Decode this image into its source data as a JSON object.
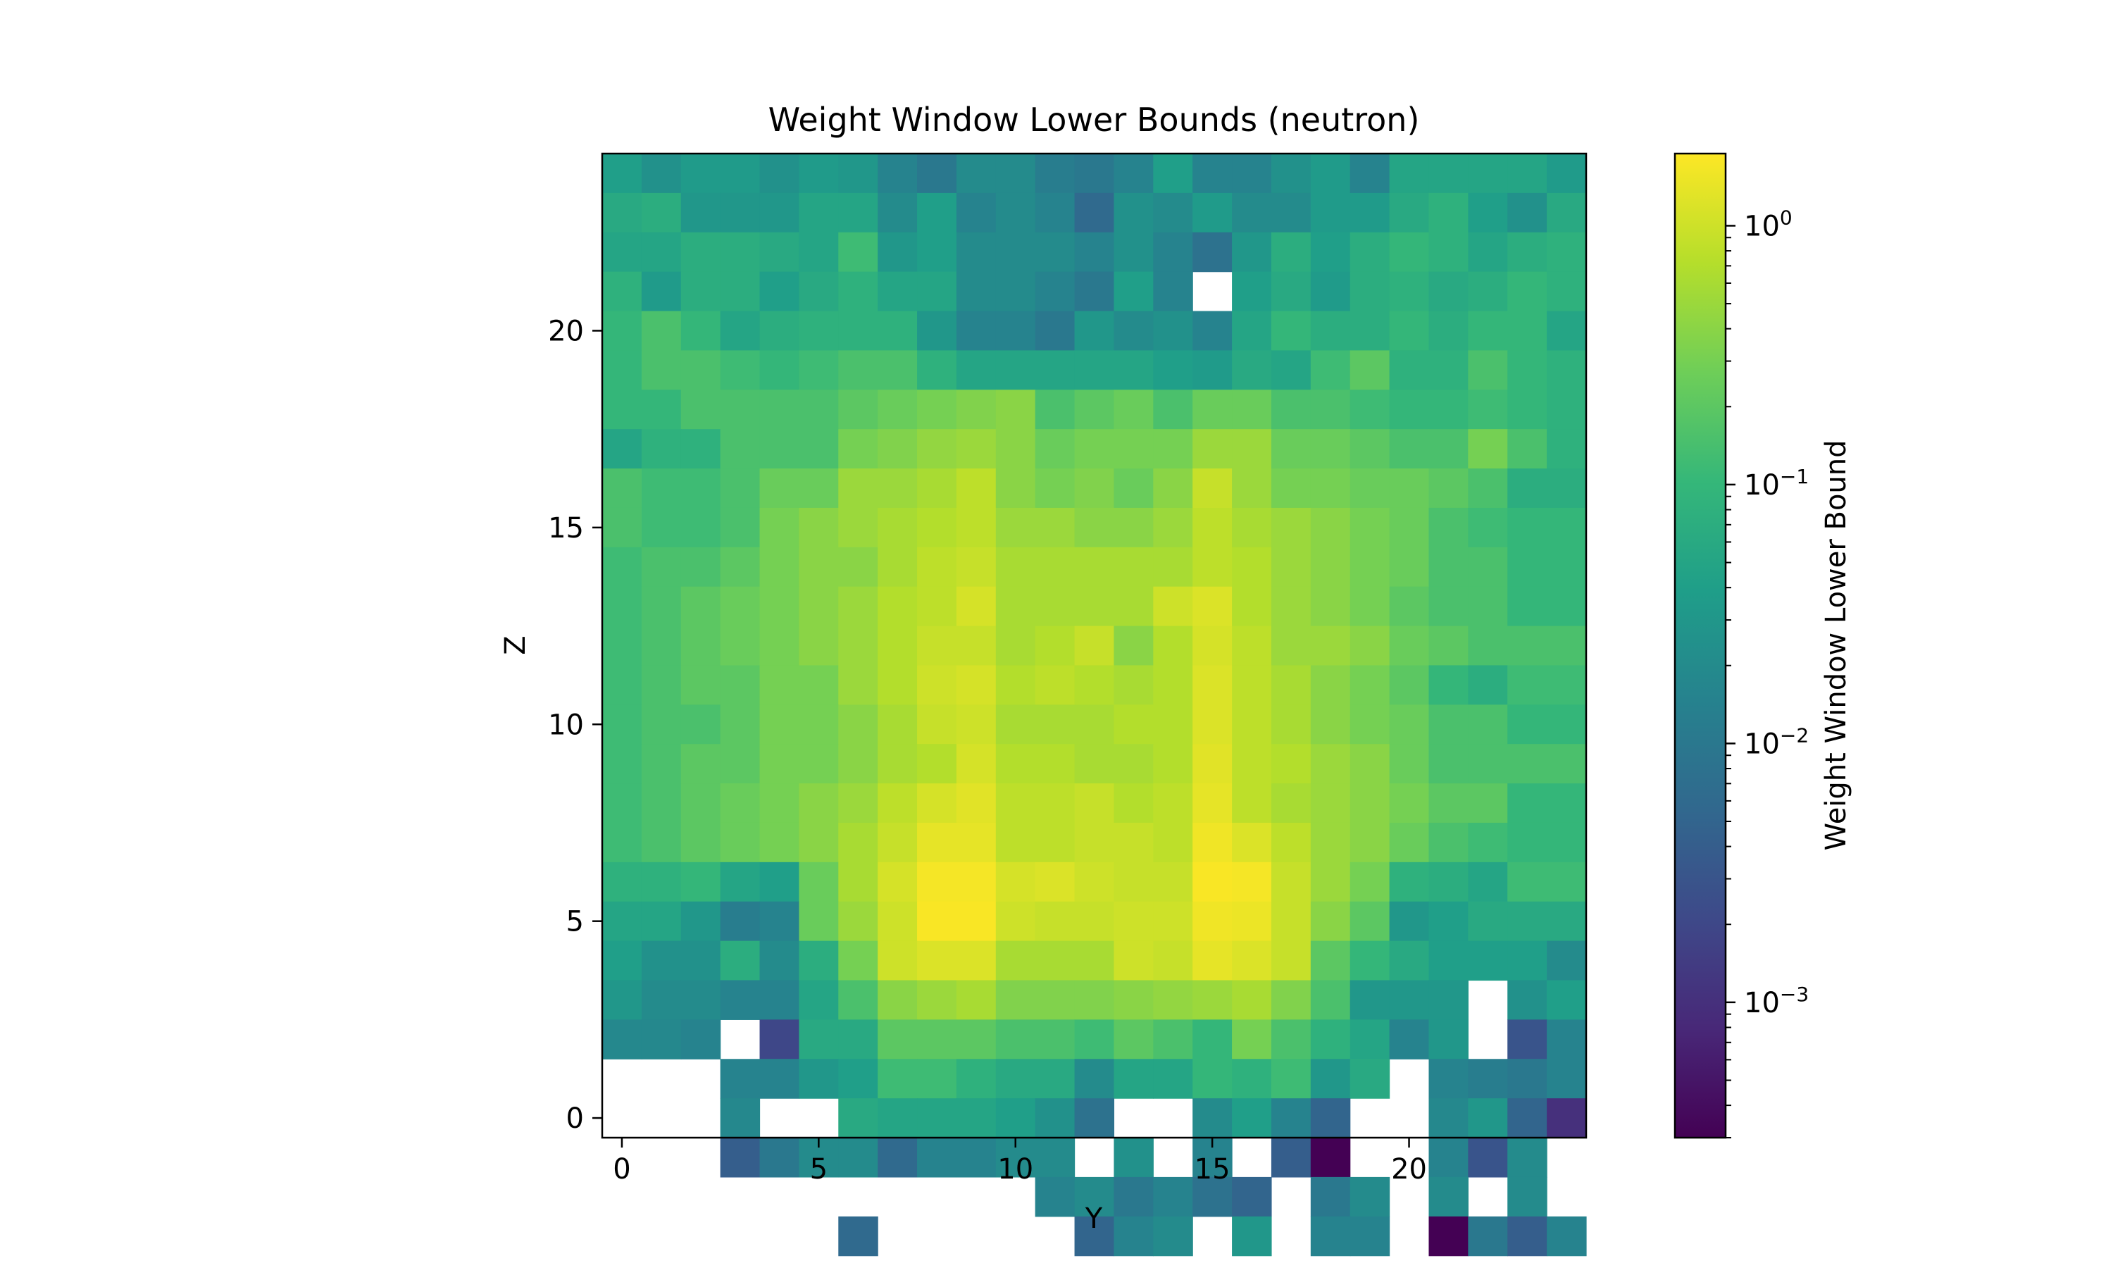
{
  "chart_data": {
    "type": "heatmap",
    "title": "Weight Window Lower Bounds (neutron)",
    "xlabel": "Y",
    "ylabel": "Z",
    "xlim": [
      -0.5,
      24.5
    ],
    "ylim": [
      -0.5,
      24.5
    ],
    "x_ticks": [
      "0",
      "5",
      "10",
      "15",
      "20"
    ],
    "x_tick_values": [
      0,
      5,
      10,
      15,
      20
    ],
    "y_ticks": [
      "0",
      "5",
      "10",
      "15",
      "20"
    ],
    "y_tick_values": [
      0,
      5,
      10,
      15,
      20
    ],
    "colorbar": {
      "label": "Weight Window Lower Bound",
      "scale": "log",
      "colormap": "viridis",
      "vmin": 0.0003,
      "vmax": 1.9,
      "tick_labels": [
        "10",
        "10",
        "10",
        "10"
      ],
      "tick_exponents": [
        "0",
        "−1",
        "−2",
        "−3"
      ],
      "tick_values": [
        1,
        0.1,
        0.01,
        0.001
      ]
    },
    "missing_value": null,
    "rows_z_descending": [
      [
        0.04,
        0.025,
        0.035,
        0.035,
        0.025,
        0.035,
        0.03,
        0.015,
        0.01,
        0.02,
        0.02,
        0.012,
        0.01,
        0.015,
        0.04,
        0.015,
        0.015,
        0.025,
        0.035,
        0.015,
        0.05,
        0.05,
        0.05,
        0.05,
        0.035
      ],
      [
        0.06,
        0.07,
        0.03,
        0.03,
        0.03,
        0.05,
        0.05,
        0.02,
        0.04,
        0.015,
        0.02,
        0.015,
        0.006,
        0.025,
        0.02,
        0.035,
        0.02,
        0.02,
        0.035,
        0.035,
        0.06,
        0.08,
        0.04,
        0.025,
        0.06
      ],
      [
        0.05,
        0.05,
        0.07,
        0.07,
        0.06,
        0.05,
        0.12,
        0.03,
        0.04,
        0.02,
        0.02,
        0.02,
        0.015,
        0.025,
        0.015,
        0.008,
        0.03,
        0.07,
        0.04,
        0.07,
        0.1,
        0.08,
        0.05,
        0.07,
        0.08
      ],
      [
        0.08,
        0.035,
        0.07,
        0.07,
        0.04,
        0.06,
        0.08,
        0.05,
        0.05,
        0.02,
        0.02,
        0.015,
        0.01,
        0.04,
        0.015,
        null,
        0.04,
        0.06,
        0.035,
        0.07,
        0.08,
        0.06,
        0.07,
        0.1,
        0.08
      ],
      [
        0.1,
        0.15,
        0.1,
        0.05,
        0.07,
        0.08,
        0.08,
        0.08,
        0.03,
        0.015,
        0.015,
        0.01,
        0.03,
        0.02,
        0.025,
        0.015,
        0.05,
        0.1,
        0.07,
        0.07,
        0.1,
        0.07,
        0.1,
        0.1,
        0.05
      ],
      [
        0.1,
        0.15,
        0.15,
        0.12,
        0.1,
        0.12,
        0.15,
        0.15,
        0.08,
        0.05,
        0.05,
        0.05,
        0.05,
        0.05,
        0.04,
        0.035,
        0.06,
        0.05,
        0.12,
        0.2,
        0.08,
        0.08,
        0.15,
        0.1,
        0.08
      ],
      [
        0.1,
        0.1,
        0.15,
        0.15,
        0.15,
        0.15,
        0.2,
        0.25,
        0.3,
        0.35,
        0.4,
        0.15,
        0.2,
        0.25,
        0.15,
        0.25,
        0.25,
        0.15,
        0.15,
        0.12,
        0.1,
        0.1,
        0.12,
        0.1,
        0.08
      ],
      [
        0.05,
        0.08,
        0.08,
        0.15,
        0.15,
        0.15,
        0.3,
        0.35,
        0.45,
        0.5,
        0.4,
        0.25,
        0.3,
        0.3,
        0.3,
        0.5,
        0.5,
        0.25,
        0.25,
        0.2,
        0.15,
        0.15,
        0.3,
        0.15,
        0.08
      ],
      [
        0.15,
        0.12,
        0.12,
        0.15,
        0.25,
        0.25,
        0.5,
        0.5,
        0.6,
        0.8,
        0.4,
        0.3,
        0.35,
        0.25,
        0.4,
        0.9,
        0.5,
        0.3,
        0.3,
        0.25,
        0.25,
        0.2,
        0.15,
        0.07,
        0.07
      ],
      [
        0.15,
        0.12,
        0.12,
        0.15,
        0.3,
        0.4,
        0.5,
        0.6,
        0.7,
        0.8,
        0.5,
        0.5,
        0.4,
        0.4,
        0.5,
        0.8,
        0.6,
        0.5,
        0.4,
        0.3,
        0.25,
        0.15,
        0.12,
        0.1,
        0.1
      ],
      [
        0.12,
        0.15,
        0.15,
        0.2,
        0.3,
        0.4,
        0.4,
        0.6,
        0.8,
        0.9,
        0.6,
        0.6,
        0.6,
        0.6,
        0.6,
        0.8,
        0.7,
        0.5,
        0.4,
        0.3,
        0.25,
        0.15,
        0.15,
        0.1,
        0.1
      ],
      [
        0.12,
        0.15,
        0.2,
        0.25,
        0.3,
        0.4,
        0.5,
        0.7,
        0.8,
        1.1,
        0.6,
        0.6,
        0.6,
        0.6,
        1.0,
        1.2,
        0.7,
        0.5,
        0.4,
        0.3,
        0.2,
        0.15,
        0.15,
        0.1,
        0.1
      ],
      [
        0.12,
        0.15,
        0.2,
        0.25,
        0.3,
        0.4,
        0.5,
        0.7,
        0.9,
        0.9,
        0.6,
        0.7,
        0.9,
        0.4,
        0.7,
        1.1,
        0.8,
        0.5,
        0.5,
        0.4,
        0.25,
        0.2,
        0.15,
        0.15,
        0.15
      ],
      [
        0.12,
        0.15,
        0.2,
        0.2,
        0.3,
        0.3,
        0.5,
        0.7,
        1.0,
        1.1,
        0.7,
        0.8,
        0.7,
        0.6,
        0.7,
        1.2,
        0.8,
        0.6,
        0.4,
        0.3,
        0.2,
        0.1,
        0.07,
        0.12,
        0.12
      ],
      [
        0.12,
        0.15,
        0.15,
        0.2,
        0.3,
        0.3,
        0.4,
        0.6,
        0.9,
        1.0,
        0.6,
        0.6,
        0.6,
        0.7,
        0.7,
        1.2,
        0.8,
        0.6,
        0.4,
        0.3,
        0.25,
        0.15,
        0.15,
        0.1,
        0.1
      ],
      [
        0.12,
        0.15,
        0.2,
        0.2,
        0.3,
        0.3,
        0.4,
        0.6,
        0.7,
        1.1,
        0.7,
        0.7,
        0.6,
        0.6,
        0.7,
        1.3,
        0.8,
        0.7,
        0.5,
        0.4,
        0.25,
        0.15,
        0.15,
        0.15,
        0.15
      ],
      [
        0.12,
        0.15,
        0.2,
        0.25,
        0.3,
        0.4,
        0.5,
        0.8,
        1.1,
        1.3,
        0.8,
        0.8,
        0.9,
        0.7,
        0.8,
        1.4,
        0.8,
        0.6,
        0.5,
        0.4,
        0.3,
        0.2,
        0.2,
        0.1,
        0.1
      ],
      [
        0.12,
        0.15,
        0.2,
        0.25,
        0.3,
        0.4,
        0.6,
        0.9,
        1.4,
        1.4,
        0.8,
        0.8,
        0.9,
        0.9,
        0.8,
        1.6,
        1.2,
        0.8,
        0.5,
        0.4,
        0.25,
        0.15,
        0.12,
        0.1,
        0.1
      ],
      [
        0.08,
        0.08,
        0.1,
        0.05,
        0.04,
        0.25,
        0.6,
        1.1,
        1.7,
        1.7,
        1.1,
        1.2,
        1.0,
        0.9,
        0.9,
        1.8,
        1.7,
        0.9,
        0.5,
        0.3,
        0.08,
        0.07,
        0.05,
        0.12,
        0.12
      ],
      [
        0.05,
        0.05,
        0.03,
        0.012,
        0.015,
        0.25,
        0.5,
        1.0,
        1.8,
        1.8,
        1.0,
        0.9,
        0.9,
        1.0,
        1.0,
        1.6,
        1.5,
        0.9,
        0.4,
        0.2,
        0.03,
        0.04,
        0.06,
        0.06,
        0.06
      ],
      [
        0.04,
        0.025,
        0.025,
        0.07,
        0.02,
        0.07,
        0.3,
        1.0,
        1.2,
        1.2,
        0.6,
        0.6,
        0.6,
        1.0,
        0.9,
        1.4,
        1.2,
        0.9,
        0.2,
        0.1,
        0.06,
        0.04,
        0.04,
        0.04,
        0.02
      ],
      [
        0.03,
        0.02,
        0.02,
        0.015,
        0.015,
        0.05,
        0.15,
        0.4,
        0.5,
        0.6,
        0.35,
        0.35,
        0.35,
        0.4,
        0.45,
        0.5,
        0.6,
        0.35,
        0.15,
        0.03,
        0.03,
        0.03,
        null,
        0.025,
        0.04
      ],
      [
        0.018,
        0.018,
        0.015,
        null,
        0.002,
        0.06,
        0.06,
        0.2,
        0.2,
        0.2,
        0.15,
        0.15,
        0.12,
        0.2,
        0.15,
        0.1,
        0.3,
        0.15,
        0.08,
        0.05,
        0.015,
        0.03,
        null,
        0.003,
        0.015
      ],
      [
        null,
        null,
        null,
        0.015,
        0.015,
        0.03,
        0.04,
        0.12,
        0.12,
        0.08,
        0.06,
        0.06,
        0.02,
        0.05,
        0.05,
        0.1,
        0.08,
        0.12,
        0.03,
        0.06,
        null,
        0.015,
        0.012,
        0.01,
        0.015
      ],
      [
        null,
        null,
        null,
        0.018,
        null,
        null,
        0.06,
        0.05,
        0.05,
        0.05,
        0.04,
        0.025,
        0.008,
        null,
        null,
        0.02,
        0.04,
        0.015,
        0.005,
        null,
        null,
        0.018,
        0.03,
        0.005,
        0.001
      ],
      [
        null,
        null,
        null,
        0.004,
        0.01,
        0.02,
        0.02,
        0.006,
        0.015,
        0.015,
        0.02,
        0.02,
        null,
        0.025,
        null,
        0.015,
        null,
        0.004,
        0.0003,
        null,
        null,
        0.015,
        0.003,
        0.02,
        null
      ],
      [
        null,
        null,
        null,
        null,
        null,
        null,
        null,
        null,
        null,
        null,
        null,
        0.015,
        0.02,
        0.01,
        0.015,
        0.008,
        0.005,
        null,
        0.01,
        0.02,
        null,
        0.02,
        null,
        0.02,
        null
      ],
      [
        null,
        null,
        null,
        null,
        null,
        null,
        0.006,
        null,
        null,
        null,
        null,
        null,
        0.005,
        0.015,
        0.02,
        null,
        0.03,
        null,
        0.015,
        0.015,
        null,
        0.0003,
        0.01,
        0.004,
        0.015
      ]
    ]
  }
}
